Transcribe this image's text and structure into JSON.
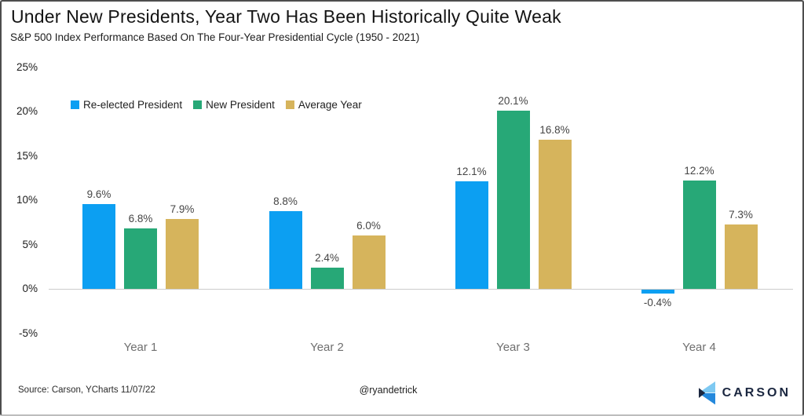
{
  "header": {
    "title": "Under New Presidents, Year Two Has Been Historically Quite Weak",
    "subtitle": "S&P 500 Index Performance Based On The Four-Year Presidential Cycle (1950 - 2021)"
  },
  "chart_data": {
    "type": "bar",
    "categories": [
      "Year 1",
      "Year 2",
      "Year 3",
      "Year 4"
    ],
    "series": [
      {
        "name": "Re-elected President",
        "color": "#0C9FF2",
        "values": [
          9.6,
          8.8,
          12.1,
          -0.4
        ],
        "labels": [
          "9.6%",
          "8.8%",
          "12.1%",
          "-0.4%"
        ]
      },
      {
        "name": "New President",
        "color": "#27A877",
        "values": [
          6.8,
          2.4,
          20.1,
          12.2
        ],
        "labels": [
          "6.8%",
          "2.4%",
          "20.1%",
          "12.2%"
        ]
      },
      {
        "name": "Average Year",
        "color": "#D6B45C",
        "values": [
          7.9,
          6.0,
          16.8,
          7.3
        ],
        "labels": [
          "7.9%",
          "6.0%",
          "16.8%",
          "7.3%"
        ]
      }
    ],
    "yticks": [
      25,
      20,
      15,
      10,
      5,
      0,
      -5
    ],
    "ytick_labels": [
      "25%",
      "20%",
      "15%",
      "10%",
      "5%",
      "0%",
      "-5%"
    ],
    "ylim": [
      -7.5,
      26
    ],
    "grid": false,
    "legend_position": "upper-left",
    "axis_line_color": "#cccccc"
  },
  "footer": {
    "source": "Source: Carson, YCharts 11/07/22",
    "handle": "@ryandetrick",
    "logo_text": "CARSON"
  },
  "logo_colors": {
    "light_blue": "#7EC9F2",
    "medium_blue": "#2488DC",
    "navy": "#1B2740"
  }
}
